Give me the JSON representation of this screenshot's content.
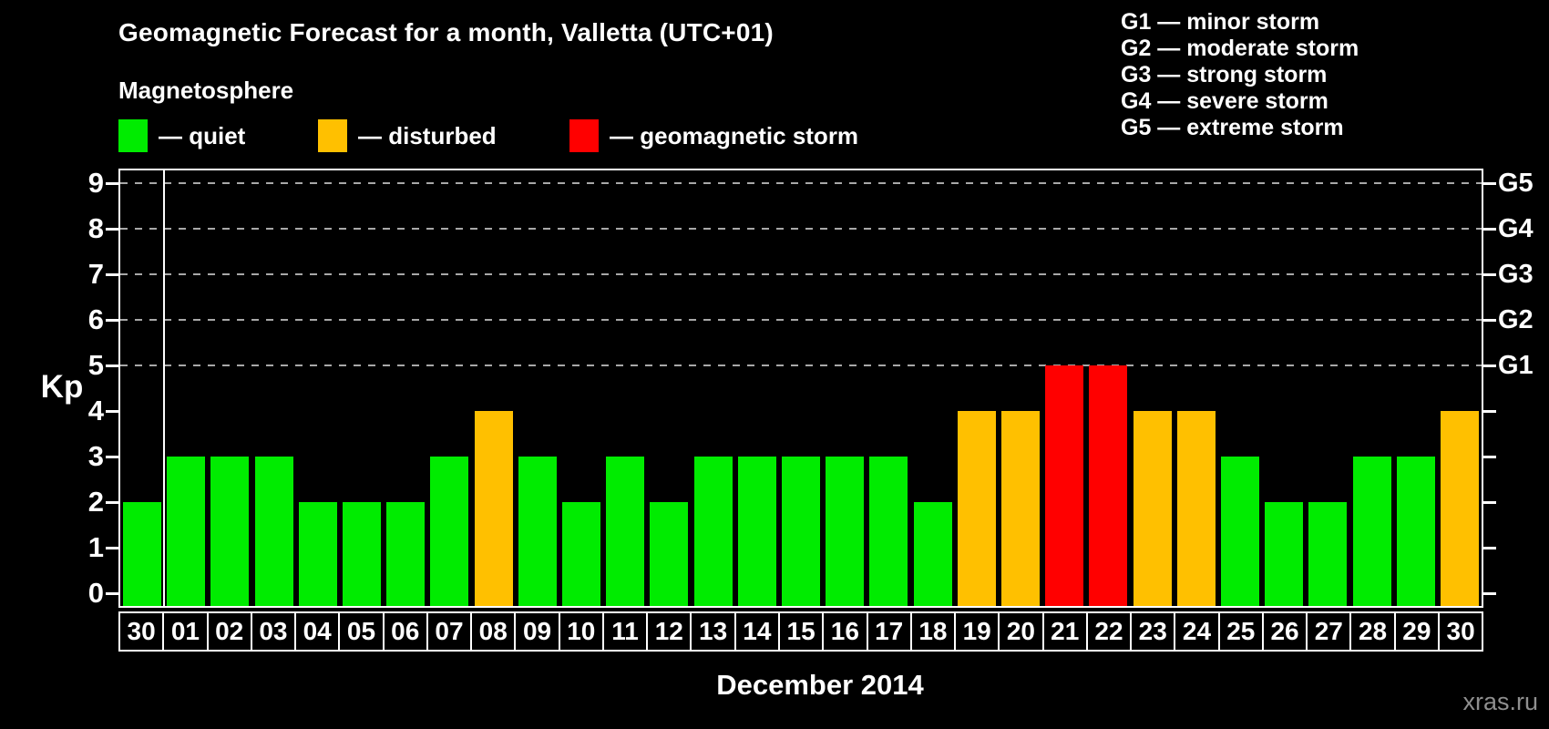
{
  "header": {
    "title": "Geomagnetic Forecast for a month, Valletta (UTC+01)",
    "subtitle": "Magnetosphere"
  },
  "magnetosphere_legend": {
    "items": [
      {
        "name": "quiet",
        "label": "— quiet",
        "color": "#00ec00"
      },
      {
        "name": "disturbed",
        "label": "— disturbed",
        "color": "#ffc000"
      },
      {
        "name": "storm",
        "label": "— geomagnetic storm",
        "color": "#ff0000"
      }
    ]
  },
  "storm_scale_legend": {
    "items": [
      {
        "code": "G1",
        "label": "G1 — minor storm"
      },
      {
        "code": "G2",
        "label": "G2 — moderate storm"
      },
      {
        "code": "G3",
        "label": "G3 — strong storm"
      },
      {
        "code": "G4",
        "label": "G4 — severe storm"
      },
      {
        "code": "G5",
        "label": "G5 — extreme storm"
      }
    ]
  },
  "chart_data": {
    "type": "bar",
    "title": "Geomagnetic Forecast for a month, Valletta (UTC+01)",
    "xlabel": "December 2014",
    "ylabel": "Kp",
    "ylim": [
      0,
      9.3
    ],
    "yticks": [
      0,
      1,
      2,
      3,
      4,
      5,
      6,
      7,
      8,
      9
    ],
    "gridlines_at": [
      5,
      6,
      7,
      8,
      9
    ],
    "grid": "dashed horizontal at storm levels only",
    "legend_position": "top",
    "right_axis": [
      {
        "value": 5,
        "label": "G1"
      },
      {
        "value": 6,
        "label": "G2"
      },
      {
        "value": 7,
        "label": "G3"
      },
      {
        "value": 8,
        "label": "G4"
      },
      {
        "value": 9,
        "label": "G5"
      }
    ],
    "categories": [
      "30",
      "01",
      "02",
      "03",
      "04",
      "05",
      "06",
      "07",
      "08",
      "09",
      "10",
      "11",
      "12",
      "13",
      "14",
      "15",
      "16",
      "17",
      "18",
      "19",
      "20",
      "21",
      "22",
      "23",
      "24",
      "25",
      "26",
      "27",
      "28",
      "29",
      "30"
    ],
    "values": [
      2,
      3,
      3,
      3,
      2,
      2,
      2,
      3,
      4,
      3,
      2,
      3,
      2,
      3,
      3,
      3,
      3,
      3,
      2,
      4,
      4,
      5,
      5,
      4,
      4,
      3,
      2,
      2,
      3,
      3,
      4
    ],
    "month_boundary_after_index": 0,
    "bar_colors": {
      "quiet": "#00ec00",
      "disturbed": "#ffc000",
      "storm": "#ff0000"
    },
    "color_rule": {
      "quiet_max_kp": 3,
      "disturbed_kp": 4,
      "storm_min_kp": 5
    }
  },
  "footer": {
    "watermark": "xras.ru"
  },
  "colors": {
    "background": "#000000",
    "axis": "#ffffff",
    "grid": "#a8a8a8",
    "text": "#ffffff",
    "watermark": "#8f8f8f"
  }
}
